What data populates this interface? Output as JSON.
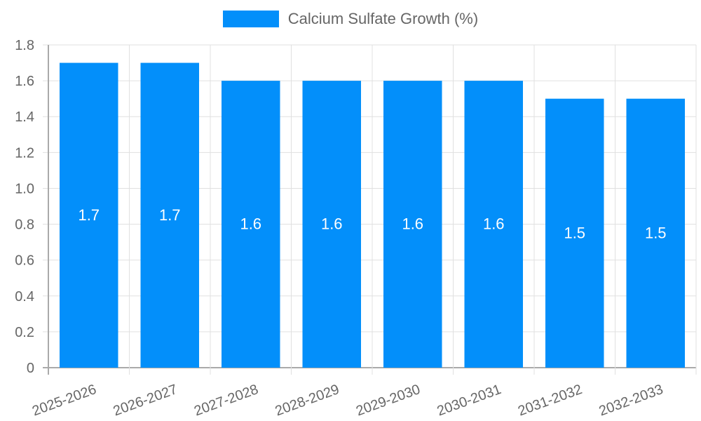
{
  "legend": {
    "label": "Calcium Sulfate Growth (%)",
    "color": "#038ffa"
  },
  "chart_data": {
    "type": "bar",
    "title": "",
    "xlabel": "",
    "ylabel": "",
    "categories": [
      "2025-2026",
      "2026-2027",
      "2027-2028",
      "2028-2029",
      "2029-2030",
      "2030-2031",
      "2031-2032",
      "2032-2033"
    ],
    "series": [
      {
        "name": "Calcium Sulfate Growth (%)",
        "values": [
          1.7,
          1.7,
          1.6,
          1.6,
          1.6,
          1.6,
          1.5,
          1.5
        ],
        "color": "#038ffa"
      }
    ],
    "ylim": [
      0,
      1.8
    ],
    "yticks": [
      "0",
      "0.2",
      "0.4",
      "0.6",
      "0.8",
      "1.0",
      "1.2",
      "1.4",
      "1.6",
      "1.8"
    ],
    "grid": true,
    "legend_position": "top",
    "data_labels": true
  }
}
